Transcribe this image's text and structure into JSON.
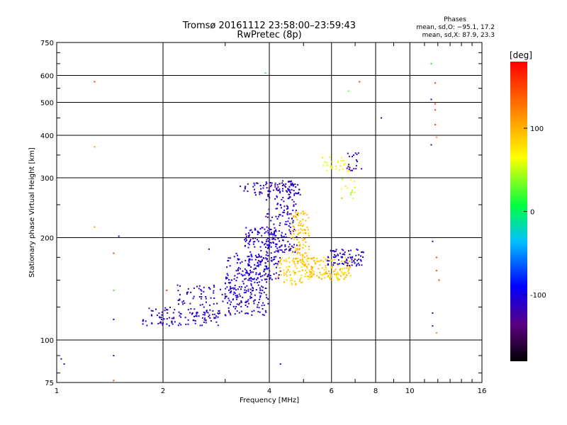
{
  "chart_data": {
    "type": "scatter",
    "title": "Tromsø 20161112 23:58:00–23:59:43",
    "subtitle": "RwPretec (8p)",
    "stats": {
      "heading": "Phases",
      "o_line": "mean, sd,O: −95.1, 17.2",
      "x_line": "mean, sd,X: 87.9, 23.3"
    },
    "xlabel": "Frequency [MHz]",
    "ylabel": "Stationary phase Virtual Height [km]",
    "x_scale": "log",
    "y_scale": "log",
    "xlim": [
      1,
      16
    ],
    "ylim": [
      75,
      750
    ],
    "x_ticks": [
      1,
      2,
      4,
      6,
      8,
      10,
      16
    ],
    "x_tick_labels": [
      "1",
      "2",
      "4",
      "6",
      "8",
      "10",
      "16"
    ],
    "y_ticks": [
      75,
      100,
      200,
      300,
      400,
      500,
      600,
      750
    ],
    "y_tick_labels": [
      "75",
      "100",
      "200",
      "300",
      "400",
      "500",
      "600",
      "750"
    ],
    "grid": true,
    "colorbar": {
      "label": "[deg]",
      "ticks": [
        100,
        0,
        -100
      ],
      "tick_labels": [
        "100",
        "0",
        "-100"
      ],
      "range": [
        -180,
        180
      ]
    },
    "clusters": [
      {
        "x0": 1.75,
        "x1": 2.9,
        "y0": 110,
        "y1": 125,
        "phase": -110,
        "n": 120
      },
      {
        "x0": 2.2,
        "x1": 3.6,
        "y0": 125,
        "y1": 145,
        "phase": -110,
        "n": 90
      },
      {
        "x0": 3.0,
        "x1": 4.0,
        "y0": 118,
        "y1": 180,
        "phase": -105,
        "n": 200
      },
      {
        "x0": 3.4,
        "x1": 4.3,
        "y0": 150,
        "y1": 215,
        "phase": -108,
        "n": 180
      },
      {
        "x0": 3.9,
        "x1": 4.8,
        "y0": 180,
        "y1": 295,
        "phase": -110,
        "n": 190
      },
      {
        "x0": 3.3,
        "x1": 4.9,
        "y0": 265,
        "y1": 290,
        "phase": -112,
        "n": 60
      },
      {
        "x0": 4.2,
        "x1": 5.0,
        "y0": 145,
        "y1": 175,
        "phase": 90,
        "n": 80
      },
      {
        "x0": 4.6,
        "x1": 5.2,
        "y0": 175,
        "y1": 240,
        "phase": 95,
        "n": 90
      },
      {
        "x0": 5.0,
        "x1": 6.8,
        "y0": 150,
        "y1": 175,
        "phase": 90,
        "n": 160
      },
      {
        "x0": 5.8,
        "x1": 7.4,
        "y0": 165,
        "y1": 185,
        "phase": -110,
        "n": 80
      },
      {
        "x0": 5.6,
        "x1": 6.8,
        "y0": 310,
        "y1": 350,
        "phase": 70,
        "n": 30
      },
      {
        "x0": 6.6,
        "x1": 7.3,
        "y0": 315,
        "y1": 355,
        "phase": -115,
        "n": 20
      },
      {
        "x0": 6.4,
        "x1": 7.0,
        "y0": 260,
        "y1": 300,
        "phase": 50,
        "n": 15
      }
    ],
    "isolated_points": [
      {
        "x": 1.28,
        "y": 575,
        "phase": 150
      },
      {
        "x": 1.28,
        "y": 370,
        "phase": 110
      },
      {
        "x": 1.28,
        "y": 215,
        "phase": 110
      },
      {
        "x": 1.45,
        "y": 180,
        "phase": 150
      },
      {
        "x": 1.45,
        "y": 140,
        "phase": 20
      },
      {
        "x": 1.45,
        "y": 115,
        "phase": -90
      },
      {
        "x": 1.45,
        "y": 90,
        "phase": -110
      },
      {
        "x": 1.45,
        "y": 76,
        "phase": 150
      },
      {
        "x": 1.5,
        "y": 202,
        "phase": -110
      },
      {
        "x": 1.03,
        "y": 88,
        "phase": -110
      },
      {
        "x": 1.05,
        "y": 85,
        "phase": -110
      },
      {
        "x": 3.9,
        "y": 610,
        "phase": 10
      },
      {
        "x": 4.3,
        "y": 85,
        "phase": -100
      },
      {
        "x": 6.7,
        "y": 540,
        "phase": 30
      },
      {
        "x": 7.2,
        "y": 575,
        "phase": 150
      },
      {
        "x": 8.3,
        "y": 450,
        "phase": -120
      },
      {
        "x": 11.5,
        "y": 650,
        "phase": 10
      },
      {
        "x": 11.5,
        "y": 510,
        "phase": -105
      },
      {
        "x": 11.5,
        "y": 375,
        "phase": -110
      },
      {
        "x": 11.6,
        "y": 195,
        "phase": -100
      },
      {
        "x": 11.6,
        "y": 120,
        "phase": -110
      },
      {
        "x": 11.6,
        "y": 110,
        "phase": -110
      },
      {
        "x": 11.8,
        "y": 570,
        "phase": 150
      },
      {
        "x": 11.8,
        "y": 495,
        "phase": 150
      },
      {
        "x": 11.8,
        "y": 475,
        "phase": 150
      },
      {
        "x": 11.8,
        "y": 430,
        "phase": 150
      },
      {
        "x": 11.9,
        "y": 395,
        "phase": 110
      },
      {
        "x": 11.9,
        "y": 175,
        "phase": 150
      },
      {
        "x": 11.9,
        "y": 160,
        "phase": 150
      },
      {
        "x": 12.1,
        "y": 150,
        "phase": 150
      },
      {
        "x": 11.9,
        "y": 105,
        "phase": 120
      },
      {
        "x": 2.7,
        "y": 185,
        "phase": -110
      },
      {
        "x": 2.05,
        "y": 140,
        "phase": 150
      },
      {
        "x": 2.2,
        "y": 145,
        "phase": -110
      }
    ]
  }
}
